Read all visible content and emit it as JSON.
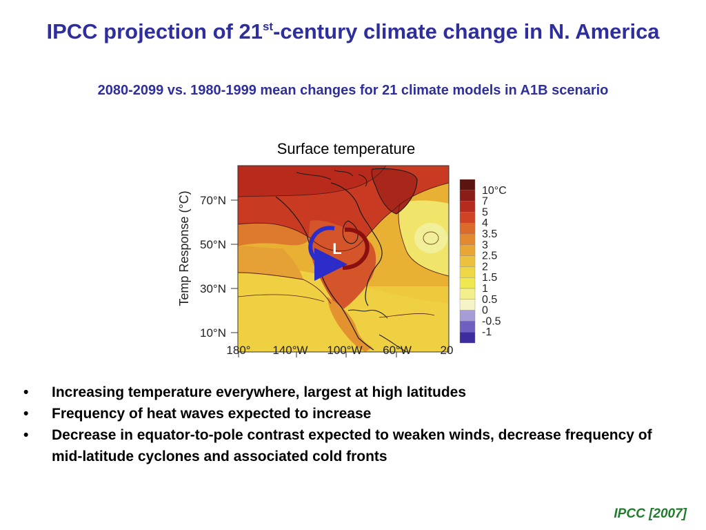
{
  "slide": {
    "title_part1": "IPCC projection of 21",
    "title_sup": "st",
    "title_part2": "-century climate change in N. America",
    "subtitle": "2080-2099 vs. 1980-1999 mean changes for 21 climate models in A1B scenario",
    "citation": "IPCC [2007]"
  },
  "figure": {
    "map_title": "Surface temperature",
    "y_axis_label": "Temp Response (°C)",
    "lat_labels": [
      "70°N",
      "50°N",
      "30°N",
      "10°N"
    ],
    "lon_labels": [
      "180°",
      "140°W",
      "100°W",
      "60°W",
      "20"
    ],
    "low_marker": "L",
    "colorbar": {
      "labels": [
        "10°C",
        "7",
        "5",
        "4",
        "3.5",
        "3",
        "2.5",
        "2",
        "1.5",
        "1",
        "0.5",
        "0",
        "-0.5",
        "-1"
      ],
      "colors": [
        "#5c1410",
        "#8a1d17",
        "#b52b1d",
        "#cf4425",
        "#dc6a2b",
        "#e38a30",
        "#e8a637",
        "#ecc13e",
        "#eed745",
        "#f0e84f",
        "#f2ef8c",
        "#f6f4c7",
        "#a69cd6",
        "#6f5fc0",
        "#3d2c9e"
      ]
    }
  },
  "bullets": [
    {
      "marker": "•",
      "text": "Increasing temperature everywhere, largest at high latitudes"
    },
    {
      "marker": "•",
      "text": "Frequency of heat waves expected to increase"
    },
    {
      "marker": "•",
      "text": "Decrease in equator-to-pole contrast expected to weaken winds, decrease frequency of mid-latitude cyclones and associated cold fronts"
    }
  ]
}
